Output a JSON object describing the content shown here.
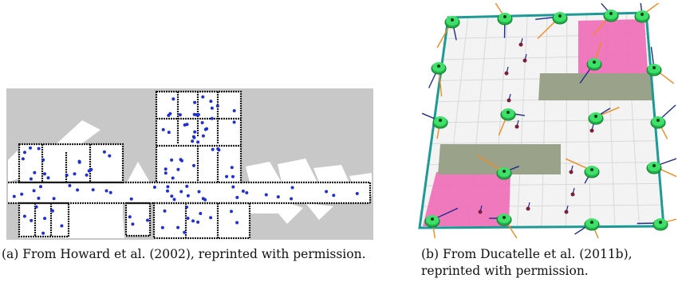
{
  "figure": {
    "panel_a": {
      "caption": "(a) From Howard et al. (2002), reprinted with permission.",
      "colors": {
        "background": "#c8c8c8",
        "free_space": "#ffffff",
        "walls": "#1a1a1a",
        "robots": "#1f2fd6"
      }
    },
    "panel_b": {
      "caption": "(b) From Ducatelle et al. (2011b), reprinted with permission.",
      "colors": {
        "floor": "#f3f3f3",
        "grid": "#d9d9d9",
        "boundary": "#1d9a95",
        "obstacle": "#9aa38a",
        "target": "#f06cb8",
        "robot": "#2ecc55"
      }
    }
  }
}
